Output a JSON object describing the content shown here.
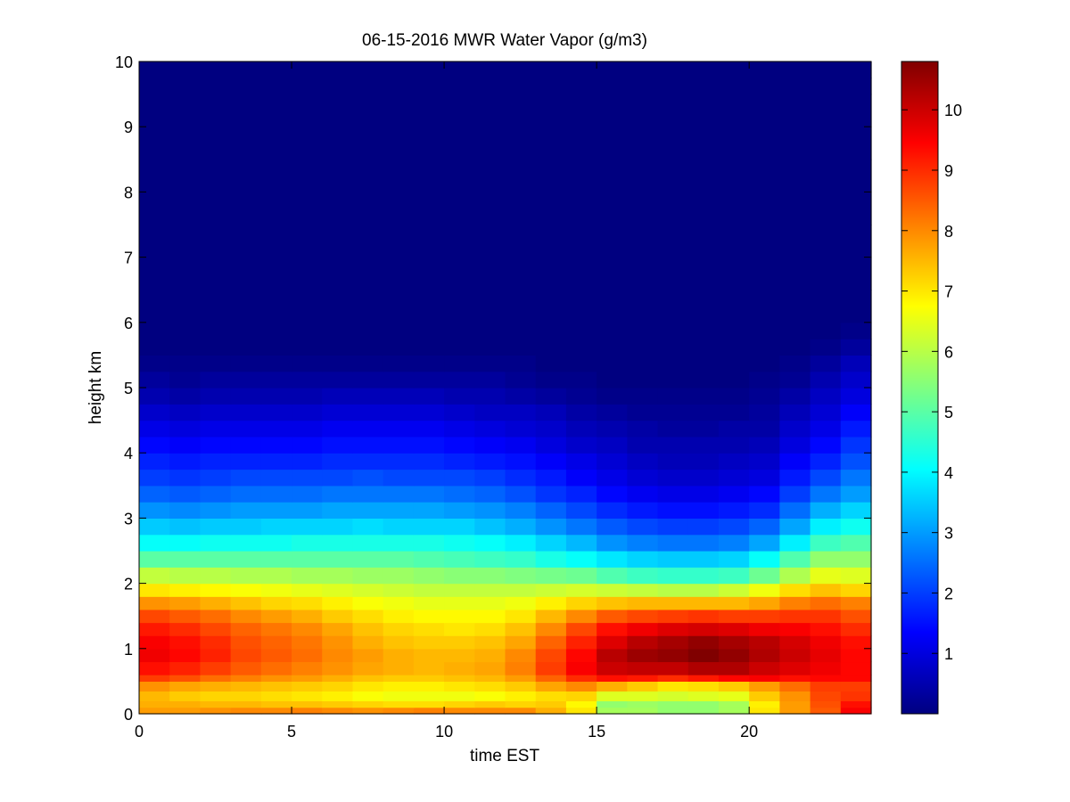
{
  "chart_data": {
    "type": "heatmap",
    "title": "06-15-2016 MWR Water Vapor (g/m3)",
    "xlabel": "time EST",
    "ylabel": "height km",
    "xlim": [
      0,
      24
    ],
    "ylim": [
      0,
      10
    ],
    "x_ticks": [
      "0",
      "5",
      "10",
      "15",
      "20"
    ],
    "y_ticks": [
      "0",
      "1",
      "2",
      "3",
      "4",
      "5",
      "6",
      "7",
      "8",
      "9",
      "10"
    ],
    "colorbar": {
      "colormap": "jet",
      "range": [
        0,
        10.8
      ],
      "ticks": [
        "1",
        "2",
        "3",
        "4",
        "5",
        "6",
        "7",
        "8",
        "9",
        "10"
      ]
    },
    "grid": false,
    "x": [
      0.5,
      1.5,
      2.5,
      3.5,
      4.5,
      5.5,
      6.5,
      7.5,
      8.5,
      9.5,
      10.5,
      11.5,
      12.5,
      13.5,
      14.5,
      15.5,
      16.5,
      17.5,
      18.5,
      19.5,
      20.5,
      21.5,
      22.5,
      23.5
    ],
    "heights_km": [
      0.0,
      0.1,
      0.2,
      0.35,
      0.5,
      0.6,
      0.8,
      1.0,
      1.2,
      1.4,
      1.6,
      1.8,
      2.0,
      2.25,
      2.5,
      2.75,
      3.0,
      3.25,
      3.5,
      3.75,
      4.0,
      4.25,
      4.5,
      4.75,
      5.0,
      5.25,
      5.5,
      5.75,
      6.0,
      6.5,
      7.0,
      7.5,
      8.0,
      8.5,
      9.0,
      9.5,
      9.75
    ],
    "values": [
      [
        7.8,
        7.8,
        7.9,
        8.0,
        8.0,
        8.1,
        8.0,
        7.9,
        8.0,
        8.1,
        8.0,
        8.0,
        8.0,
        7.6,
        7.0,
        5.8,
        5.8,
        5.6,
        5.6,
        5.8,
        7.0,
        7.8,
        8.5,
        9.5
      ],
      [
        7.6,
        7.6,
        7.5,
        7.5,
        7.4,
        7.4,
        7.3,
        7.2,
        7.1,
        7.1,
        7.2,
        7.3,
        7.2,
        7.3,
        6.8,
        5.6,
        5.7,
        5.6,
        5.6,
        5.8,
        6.9,
        7.8,
        8.6,
        9.3
      ],
      [
        7.5,
        7.3,
        7.2,
        7.2,
        7.1,
        7.0,
        6.9,
        6.7,
        6.6,
        6.6,
        6.6,
        6.7,
        6.9,
        7.1,
        7.2,
        6.4,
        6.4,
        6.3,
        6.4,
        6.5,
        7.3,
        7.9,
        8.7,
        8.9
      ],
      [
        7.9,
        7.7,
        7.6,
        7.5,
        7.4,
        7.3,
        7.2,
        7.0,
        6.9,
        6.9,
        7.0,
        7.1,
        7.3,
        7.7,
        8.0,
        7.6,
        7.3,
        7.0,
        7.1,
        7.3,
        7.8,
        8.3,
        8.8,
        8.8
      ],
      [
        8.8,
        8.6,
        8.3,
        8.1,
        7.9,
        7.8,
        7.6,
        7.4,
        7.3,
        7.3,
        7.4,
        7.5,
        7.8,
        8.4,
        9.0,
        9.3,
        9.2,
        9.0,
        9.2,
        9.4,
        9.5,
        9.3,
        9.4,
        9.4
      ],
      [
        9.3,
        9.1,
        8.8,
        8.5,
        8.3,
        8.1,
        7.9,
        7.7,
        7.6,
        7.5,
        7.6,
        7.7,
        8.1,
        8.8,
        9.5,
        10.0,
        10.1,
        10.1,
        10.3,
        10.3,
        10.0,
        9.8,
        9.6,
        9.4
      ],
      [
        9.6,
        9.4,
        9.1,
        8.7,
        8.5,
        8.3,
        8.0,
        7.8,
        7.6,
        7.5,
        7.5,
        7.6,
        8.0,
        8.7,
        9.4,
        10.2,
        10.5,
        10.6,
        10.8,
        10.6,
        10.3,
        10.0,
        9.7,
        9.4
      ],
      [
        9.5,
        9.3,
        9.0,
        8.6,
        8.4,
        8.2,
        7.9,
        7.6,
        7.4,
        7.3,
        7.3,
        7.4,
        7.7,
        8.4,
        9.1,
        9.8,
        10.2,
        10.4,
        10.6,
        10.4,
        10.2,
        9.9,
        9.6,
        9.3
      ],
      [
        9.2,
        9.0,
        8.7,
        8.4,
        8.2,
        8.0,
        7.7,
        7.4,
        7.2,
        7.1,
        7.0,
        7.1,
        7.4,
        8.0,
        8.7,
        9.3,
        9.6,
        9.8,
        9.9,
        9.8,
        9.6,
        9.5,
        9.3,
        9.0
      ],
      [
        8.7,
        8.5,
        8.3,
        8.0,
        7.8,
        7.6,
        7.3,
        7.1,
        6.9,
        6.8,
        6.8,
        6.8,
        7.0,
        7.5,
        8.0,
        8.5,
        8.7,
        8.8,
        8.9,
        8.8,
        8.8,
        8.9,
        8.9,
        8.6
      ],
      [
        7.9,
        7.8,
        7.6,
        7.4,
        7.2,
        7.1,
        6.9,
        6.7,
        6.6,
        6.5,
        6.5,
        6.5,
        6.6,
        6.9,
        7.2,
        7.4,
        7.5,
        7.5,
        7.5,
        7.5,
        7.7,
        8.1,
        8.3,
        8.1
      ],
      [
        7.0,
        6.9,
        6.8,
        6.7,
        6.6,
        6.5,
        6.4,
        6.3,
        6.2,
        6.1,
        6.1,
        6.1,
        6.1,
        6.2,
        6.3,
        6.2,
        6.1,
        6.0,
        6.0,
        6.2,
        6.6,
        7.1,
        7.4,
        7.2
      ],
      [
        6.1,
        6.0,
        6.0,
        5.9,
        5.9,
        5.8,
        5.8,
        5.7,
        5.7,
        5.6,
        5.5,
        5.5,
        5.4,
        5.3,
        5.2,
        4.9,
        4.7,
        4.6,
        4.6,
        4.7,
        5.2,
        5.9,
        6.5,
        6.4
      ],
      [
        5.0,
        5.0,
        5.0,
        5.0,
        5.0,
        5.0,
        5.0,
        5.0,
        5.0,
        4.9,
        4.8,
        4.7,
        4.6,
        4.3,
        4.1,
        3.8,
        3.6,
        3.5,
        3.5,
        3.6,
        4.1,
        4.9,
        5.6,
        5.6
      ],
      [
        4.1,
        4.1,
        4.2,
        4.2,
        4.2,
        4.3,
        4.3,
        4.3,
        4.3,
        4.3,
        4.2,
        4.1,
        3.9,
        3.6,
        3.3,
        2.9,
        2.7,
        2.6,
        2.6,
        2.7,
        3.1,
        3.9,
        4.7,
        4.9
      ],
      [
        3.5,
        3.4,
        3.5,
        3.5,
        3.6,
        3.6,
        3.6,
        3.7,
        3.6,
        3.6,
        3.6,
        3.4,
        3.2,
        2.9,
        2.6,
        2.3,
        2.1,
        2.0,
        2.0,
        2.1,
        2.4,
        3.1,
        3.9,
        4.2
      ],
      [
        2.9,
        2.8,
        2.9,
        3.0,
        3.0,
        3.0,
        3.1,
        3.1,
        3.1,
        3.1,
        3.0,
        2.9,
        2.7,
        2.4,
        2.1,
        1.8,
        1.6,
        1.5,
        1.5,
        1.6,
        1.8,
        2.5,
        3.2,
        3.6
      ],
      [
        2.4,
        2.3,
        2.4,
        2.5,
        2.5,
        2.5,
        2.6,
        2.6,
        2.6,
        2.6,
        2.5,
        2.4,
        2.2,
        1.9,
        1.7,
        1.4,
        1.2,
        1.1,
        1.1,
        1.2,
        1.4,
        2.0,
        2.6,
        3.0
      ],
      [
        2.0,
        1.9,
        2.0,
        2.1,
        2.1,
        2.1,
        2.1,
        2.2,
        2.1,
        2.1,
        2.1,
        2.0,
        1.8,
        1.6,
        1.3,
        1.1,
        0.9,
        0.8,
        0.8,
        0.9,
        1.0,
        1.6,
        2.1,
        2.6
      ],
      [
        1.7,
        1.6,
        1.7,
        1.7,
        1.7,
        1.7,
        1.8,
        1.8,
        1.8,
        1.8,
        1.7,
        1.6,
        1.5,
        1.3,
        1.1,
        0.9,
        0.7,
        0.6,
        0.6,
        0.7,
        0.8,
        1.3,
        1.7,
        2.2
      ],
      [
        1.4,
        1.3,
        1.4,
        1.4,
        1.4,
        1.4,
        1.5,
        1.5,
        1.5,
        1.5,
        1.4,
        1.3,
        1.2,
        1.0,
        0.8,
        0.7,
        0.5,
        0.5,
        0.5,
        0.5,
        0.6,
        1.0,
        1.4,
        1.9
      ],
      [
        1.1,
        1.0,
        1.1,
        1.1,
        1.1,
        1.1,
        1.2,
        1.2,
        1.2,
        1.2,
        1.1,
        1.0,
        0.9,
        0.8,
        0.6,
        0.5,
        0.4,
        0.3,
        0.3,
        0.4,
        0.4,
        0.8,
        1.1,
        1.6
      ],
      [
        0.8,
        0.7,
        0.8,
        0.8,
        0.8,
        0.8,
        0.9,
        0.9,
        0.9,
        0.9,
        0.8,
        0.7,
        0.7,
        0.6,
        0.4,
        0.3,
        0.2,
        0.2,
        0.2,
        0.2,
        0.3,
        0.6,
        0.9,
        1.3
      ],
      [
        0.5,
        0.4,
        0.5,
        0.5,
        0.5,
        0.5,
        0.6,
        0.6,
        0.6,
        0.6,
        0.5,
        0.5,
        0.4,
        0.3,
        0.2,
        0.1,
        0.1,
        0.1,
        0.1,
        0.1,
        0.2,
        0.4,
        0.7,
        1.0
      ],
      [
        0.3,
        0.2,
        0.3,
        0.3,
        0.3,
        0.3,
        0.3,
        0.3,
        0.3,
        0.3,
        0.3,
        0.3,
        0.2,
        0.1,
        0.1,
        0.0,
        0.0,
        0.0,
        0.0,
        0.0,
        0.1,
        0.2,
        0.5,
        0.8
      ],
      [
        0.1,
        0.1,
        0.1,
        0.1,
        0.1,
        0.1,
        0.1,
        0.1,
        0.1,
        0.1,
        0.1,
        0.1,
        0.1,
        0.0,
        0.0,
        0.0,
        0.0,
        0.0,
        0.0,
        0.0,
        0.0,
        0.1,
        0.3,
        0.6
      ],
      [
        0.0,
        0.0,
        0.0,
        0.0,
        0.0,
        0.0,
        0.0,
        0.0,
        0.0,
        0.0,
        0.0,
        0.0,
        0.0,
        0.0,
        0.0,
        0.0,
        0.0,
        0.0,
        0.0,
        0.0,
        0.0,
        0.0,
        0.1,
        0.3
      ],
      [
        0.0,
        0.0,
        0.0,
        0.0,
        0.0,
        0.0,
        0.0,
        0.0,
        0.0,
        0.0,
        0.0,
        0.0,
        0.0,
        0.0,
        0.0,
        0.0,
        0.0,
        0.0,
        0.0,
        0.0,
        0.0,
        0.0,
        0.0,
        0.1
      ],
      [
        0.0,
        0.0,
        0.0,
        0.0,
        0.0,
        0.0,
        0.0,
        0.0,
        0.0,
        0.0,
        0.0,
        0.0,
        0.0,
        0.0,
        0.0,
        0.0,
        0.0,
        0.0,
        0.0,
        0.0,
        0.0,
        0.0,
        0.0,
        0.0
      ],
      [
        0.0,
        0.0,
        0.0,
        0.0,
        0.0,
        0.0,
        0.0,
        0.0,
        0.0,
        0.0,
        0.0,
        0.0,
        0.0,
        0.0,
        0.0,
        0.0,
        0.0,
        0.0,
        0.0,
        0.0,
        0.0,
        0.0,
        0.0,
        0.0
      ],
      [
        0.0,
        0.0,
        0.0,
        0.0,
        0.0,
        0.0,
        0.0,
        0.0,
        0.0,
        0.0,
        0.0,
        0.0,
        0.0,
        0.0,
        0.0,
        0.0,
        0.0,
        0.0,
        0.0,
        0.0,
        0.0,
        0.0,
        0.0,
        0.0
      ],
      [
        0.0,
        0.0,
        0.0,
        0.0,
        0.0,
        0.0,
        0.0,
        0.0,
        0.0,
        0.0,
        0.0,
        0.0,
        0.0,
        0.0,
        0.0,
        0.0,
        0.0,
        0.0,
        0.0,
        0.0,
        0.0,
        0.0,
        0.0,
        0.0
      ],
      [
        0.0,
        0.0,
        0.0,
        0.0,
        0.0,
        0.0,
        0.0,
        0.0,
        0.0,
        0.0,
        0.0,
        0.0,
        0.0,
        0.0,
        0.0,
        0.0,
        0.0,
        0.0,
        0.0,
        0.0,
        0.0,
        0.0,
        0.0,
        0.0
      ],
      [
        0.0,
        0.0,
        0.0,
        0.0,
        0.0,
        0.0,
        0.0,
        0.0,
        0.0,
        0.0,
        0.0,
        0.0,
        0.0,
        0.0,
        0.0,
        0.0,
        0.0,
        0.0,
        0.0,
        0.0,
        0.0,
        0.0,
        0.0,
        0.0
      ],
      [
        0.0,
        0.0,
        0.0,
        0.0,
        0.0,
        0.0,
        0.0,
        0.0,
        0.0,
        0.0,
        0.0,
        0.0,
        0.0,
        0.0,
        0.0,
        0.0,
        0.0,
        0.0,
        0.0,
        0.0,
        0.0,
        0.0,
        0.0,
        0.0
      ],
      [
        0.0,
        0.0,
        0.0,
        0.0,
        0.0,
        0.0,
        0.0,
        0.0,
        0.0,
        0.0,
        0.0,
        0.0,
        0.0,
        0.0,
        0.0,
        0.0,
        0.0,
        0.0,
        0.0,
        0.0,
        0.0,
        0.0,
        0.0,
        0.0
      ],
      [
        0.0,
        0.0,
        0.0,
        0.0,
        0.0,
        0.0,
        0.0,
        0.0,
        0.0,
        0.0,
        0.0,
        0.0,
        0.0,
        0.0,
        0.0,
        0.0,
        0.0,
        0.0,
        0.0,
        0.0,
        0.0,
        0.0,
        0.0,
        0.0
      ]
    ]
  }
}
